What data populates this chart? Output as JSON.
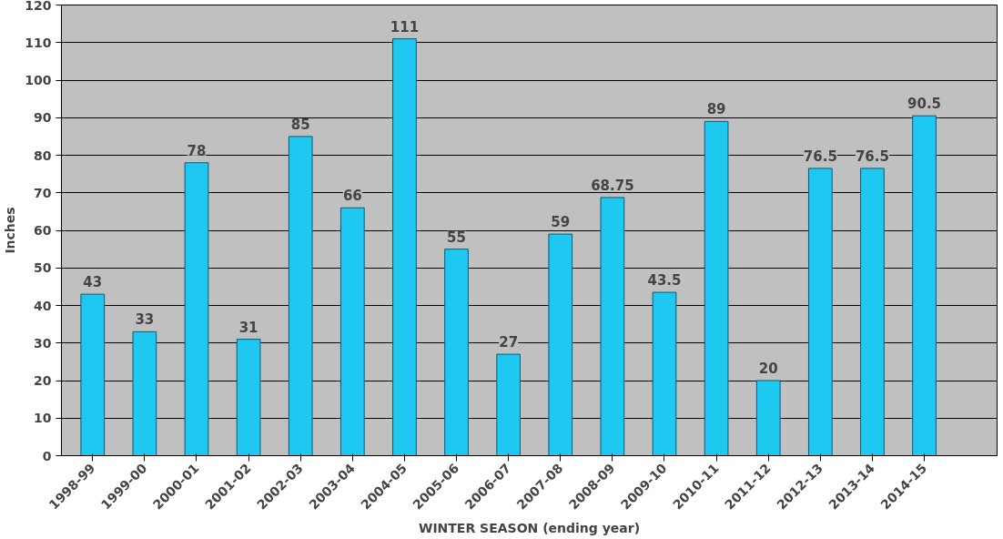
{
  "chart_data": {
    "type": "bar",
    "xlabel": "WINTER SEASON (ending year)",
    "ylabel": "Inches",
    "categories": [
      "1998-99",
      "1999-00",
      "2000-01",
      "2001-02",
      "2002-03",
      "2003-04",
      "2004-05",
      "2005-06",
      "2006-07",
      "2007-08",
      "2008-09",
      "2009-10",
      "2010-11",
      "2011-12",
      "2012-13",
      "2013-14",
      "2014-15"
    ],
    "values": [
      43,
      33,
      78,
      31,
      85,
      66,
      111,
      55,
      27,
      59,
      68.75,
      43.5,
      89,
      20,
      76.5,
      76.5,
      90.5
    ],
    "color": "#1ec8f0",
    "ylim": [
      0,
      120
    ],
    "yticks": [
      0,
      10,
      20,
      30,
      40,
      50,
      60,
      70,
      80,
      90,
      100,
      110,
      120
    ],
    "grid": "y",
    "data_labels": true
  }
}
